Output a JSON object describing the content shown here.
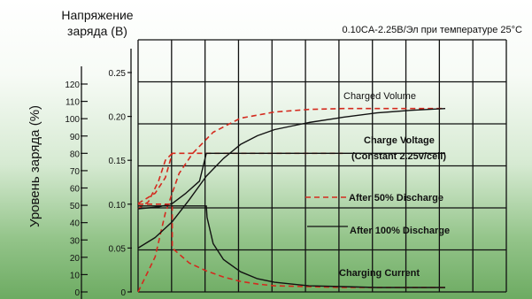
{
  "chart_data": {
    "type": "line",
    "title": "0.10CA-2.25В/Эл при температуре 25°C",
    "left_axis": {
      "label": "Уровень заряда (%)",
      "ticks": [
        "0",
        "10",
        "20",
        "30",
        "40",
        "50",
        "60",
        "70",
        "80",
        "90",
        "100",
        "110",
        "120"
      ],
      "range": [
        0,
        120
      ]
    },
    "mid_axis": {
      "label_line1": "Напряжение",
      "label_line2": "заряда (В)",
      "ticks": [
        "0",
        "0.05",
        "0.10",
        "0.15",
        "0.20",
        "0.25"
      ],
      "range": [
        0,
        0.25
      ]
    },
    "x_range": [
      0,
      10
    ],
    "grid": true,
    "annotations": {
      "charged_volume": "Charged Volume",
      "charge_voltage_1": "Charge Voltage",
      "charge_voltage_2": "(Constant 2.25v/cell)",
      "legend_dashed": "After 50% Discharge",
      "legend_solid": "After 100% Discharge",
      "charging_current": "Charging Current"
    },
    "series": [
      {
        "style": "dashed",
        "color": "#d42a1e",
        "axis": "mid",
        "points": [
          [
            0,
            0
          ],
          [
            0.5,
            0.04
          ],
          [
            0.8,
            0.09
          ],
          [
            1.2,
            0.135
          ],
          [
            1.6,
            0.158
          ],
          [
            2.2,
            0.182
          ],
          [
            3,
            0.198
          ],
          [
            4,
            0.205
          ],
          [
            5,
            0.208
          ],
          [
            6,
            0.209
          ],
          [
            7,
            0.209
          ],
          [
            8,
            0.209
          ],
          [
            9,
            0.209
          ]
        ]
      },
      {
        "style": "solid",
        "color": "#111111",
        "axis": "mid",
        "points": [
          [
            0,
            0.05
          ],
          [
            0.5,
            0.062
          ],
          [
            1,
            0.08
          ],
          [
            1.5,
            0.105
          ],
          [
            2,
            0.132
          ],
          [
            2.5,
            0.152
          ],
          [
            3,
            0.168
          ],
          [
            3.5,
            0.178
          ],
          [
            4,
            0.185
          ],
          [
            5,
            0.193
          ],
          [
            6,
            0.199
          ],
          [
            7,
            0.204
          ],
          [
            8,
            0.207
          ],
          [
            9,
            0.209
          ]
        ]
      },
      {
        "style": "dashed",
        "color": "#d42a1e",
        "axis": "left",
        "points": [
          [
            0,
            51
          ],
          [
            0.5,
            57
          ],
          [
            0.8,
            66
          ],
          [
            1,
            80
          ],
          [
            1.4,
            80
          ],
          [
            2,
            80
          ],
          [
            3,
            80
          ],
          [
            4,
            80
          ],
          [
            5,
            80
          ],
          [
            6,
            80
          ]
        ]
      },
      {
        "style": "dashed",
        "color": "#d42a1e",
        "axis": "left",
        "points": [
          [
            0,
            48
          ],
          [
            0.3,
            52
          ],
          [
            0.6,
            64
          ],
          [
            0.8,
            76
          ],
          [
            1,
            80
          ]
        ]
      },
      {
        "style": "solid",
        "color": "#111111",
        "axis": "left",
        "points": [
          [
            0,
            48
          ],
          [
            0.6,
            49
          ],
          [
            1,
            51
          ],
          [
            1.4,
            57
          ],
          [
            1.8,
            64
          ],
          [
            2,
            80
          ],
          [
            3,
            80
          ],
          [
            4,
            80
          ],
          [
            5,
            80
          ],
          [
            6,
            80
          ],
          [
            7,
            80
          ],
          [
            8,
            80
          ],
          [
            9,
            80
          ]
        ]
      },
      {
        "style": "dashed",
        "color": "#d42a1e",
        "axis": "mid",
        "points": [
          [
            0,
            0.1
          ],
          [
            0.5,
            0.1
          ],
          [
            1,
            0.1
          ],
          [
            1,
            0.05
          ],
          [
            1.5,
            0.033
          ],
          [
            2,
            0.024
          ],
          [
            2.5,
            0.017
          ],
          [
            3,
            0.012
          ],
          [
            3.5,
            0.009
          ],
          [
            4,
            0.007
          ],
          [
            5,
            0.006
          ],
          [
            6,
            0.005
          ],
          [
            7,
            0.005
          ],
          [
            8,
            0.005
          ],
          [
            9,
            0.005
          ]
        ]
      },
      {
        "style": "solid",
        "color": "#111111",
        "axis": "mid",
        "points": [
          [
            0,
            0.098
          ],
          [
            1,
            0.098
          ],
          [
            2,
            0.098
          ],
          [
            2.02,
            0.085
          ],
          [
            2.2,
            0.055
          ],
          [
            2.5,
            0.037
          ],
          [
            3,
            0.023
          ],
          [
            3.5,
            0.015
          ],
          [
            4,
            0.011
          ],
          [
            5,
            0.007
          ],
          [
            6,
            0.006
          ],
          [
            7,
            0.005
          ],
          [
            8,
            0.005
          ],
          [
            9,
            0.005
          ]
        ]
      }
    ]
  }
}
